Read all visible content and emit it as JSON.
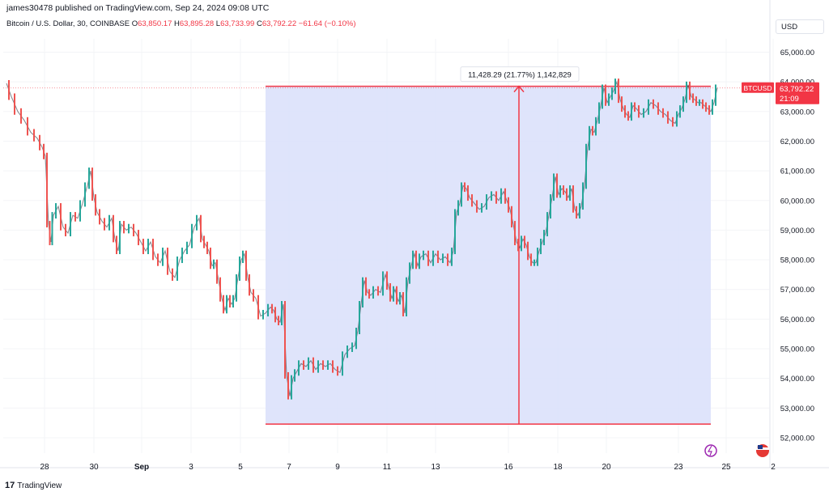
{
  "header": {
    "published": "james30478 published on TradingView.com, Sep 24, 2024 09:08 UTC"
  },
  "symbol": {
    "name": "Bitcoin / U.S. Dollar, 30, COINBASE",
    "open_label": "O",
    "open": "63,850.17",
    "high_label": "H",
    "high": "63,895.28",
    "low_label": "L",
    "low": "63,733.99",
    "close_label": "C",
    "close": "63,792.22",
    "change": "−61.64 (−0.10%)"
  },
  "currency": "USD",
  "footer": {
    "brand": "TradingView",
    "logo_glyph": "17"
  },
  "colors": {
    "up": "#26a69a",
    "down": "#ef5350",
    "measure": "#f23645",
    "measure_fill": "#dbe1fb"
  },
  "chart_data": {
    "type": "candlestick",
    "x_ticks": [
      "28",
      "30",
      "Sep",
      "3",
      "5",
      "7",
      "9",
      "11",
      "13",
      "16",
      "18",
      "20",
      "23",
      "25",
      "2"
    ],
    "y_ticks": [
      "65,000.00",
      "64,000.00",
      "63,000.00",
      "62,000.00",
      "61,000.00",
      "60,000.00",
      "59,000.00",
      "58,000.00",
      "57,000.00",
      "56,000.00",
      "55,000.00",
      "54,000.00",
      "53,000.00",
      "52,000.00"
    ],
    "ylim": [
      51700,
      65900
    ],
    "series": [
      {
        "values": [
          [
            0,
            63950
          ],
          [
            6,
            63500
          ],
          [
            14,
            63000
          ],
          [
            22,
            62700
          ],
          [
            30,
            62300
          ],
          [
            38,
            62100
          ],
          [
            44,
            61800
          ],
          [
            48,
            61500
          ],
          [
            52,
            59200
          ],
          [
            55,
            58600
          ],
          [
            58,
            59500
          ],
          [
            64,
            59800
          ],
          [
            70,
            59100
          ],
          [
            76,
            58900
          ],
          [
            82,
            59500
          ],
          [
            88,
            59400
          ],
          [
            94,
            59900
          ],
          [
            100,
            60500
          ],
          [
            104,
            61000
          ],
          [
            108,
            60100
          ],
          [
            112,
            59600
          ],
          [
            118,
            59300
          ],
          [
            124,
            59100
          ],
          [
            130,
            59400
          ],
          [
            134,
            58700
          ],
          [
            138,
            58300
          ],
          [
            142,
            59200
          ],
          [
            148,
            59000
          ],
          [
            154,
            59100
          ],
          [
            160,
            58900
          ],
          [
            166,
            58600
          ],
          [
            172,
            58300
          ],
          [
            178,
            58600
          ],
          [
            184,
            58100
          ],
          [
            190,
            57900
          ],
          [
            196,
            58300
          ],
          [
            202,
            57600
          ],
          [
            208,
            57400
          ],
          [
            214,
            58000
          ],
          [
            220,
            58300
          ],
          [
            226,
            58500
          ],
          [
            232,
            59100
          ],
          [
            238,
            59400
          ],
          [
            242,
            58700
          ],
          [
            246,
            58500
          ],
          [
            250,
            58300
          ],
          [
            254,
            57800
          ],
          [
            258,
            57900
          ],
          [
            262,
            57300
          ],
          [
            266,
            56700
          ],
          [
            270,
            56300
          ],
          [
            274,
            56700
          ],
          [
            278,
            56500
          ],
          [
            282,
            56700
          ],
          [
            286,
            57400
          ],
          [
            290,
            58000
          ],
          [
            294,
            58200
          ],
          [
            298,
            57400
          ],
          [
            302,
            56900
          ],
          [
            308,
            56700
          ],
          [
            314,
            56100
          ],
          [
            320,
            56200
          ],
          [
            326,
            56400
          ],
          [
            330,
            56300
          ],
          [
            334,
            56000
          ],
          [
            338,
            55900
          ],
          [
            342,
            56500
          ],
          [
            346,
            54100
          ],
          [
            350,
            53400
          ],
          [
            354,
            54000
          ],
          [
            358,
            54200
          ],
          [
            364,
            54500
          ],
          [
            370,
            54400
          ],
          [
            376,
            54600
          ],
          [
            382,
            54300
          ],
          [
            388,
            54500
          ],
          [
            394,
            54400
          ],
          [
            400,
            54500
          ],
          [
            406,
            54300
          ],
          [
            412,
            54200
          ],
          [
            418,
            54800
          ],
          [
            424,
            55000
          ],
          [
            430,
            55100
          ],
          [
            434,
            55600
          ],
          [
            438,
            56500
          ],
          [
            442,
            57300
          ],
          [
            446,
            56900
          ],
          [
            450,
            56800
          ],
          [
            456,
            57000
          ],
          [
            462,
            56900
          ],
          [
            468,
            57500
          ],
          [
            472,
            57100
          ],
          [
            476,
            56700
          ],
          [
            480,
            57000
          ],
          [
            484,
            56600
          ],
          [
            488,
            56800
          ],
          [
            492,
            56200
          ],
          [
            496,
            57300
          ],
          [
            500,
            57800
          ],
          [
            504,
            58200
          ],
          [
            508,
            57800
          ],
          [
            512,
            58100
          ],
          [
            518,
            58200
          ],
          [
            524,
            57900
          ],
          [
            530,
            58200
          ],
          [
            536,
            58000
          ],
          [
            542,
            58100
          ],
          [
            548,
            57900
          ],
          [
            552,
            58300
          ],
          [
            556,
            59600
          ],
          [
            560,
            59900
          ],
          [
            564,
            60500
          ],
          [
            568,
            60400
          ],
          [
            572,
            60100
          ],
          [
            578,
            59900
          ],
          [
            584,
            59700
          ],
          [
            590,
            59800
          ],
          [
            596,
            60100
          ],
          [
            602,
            60200
          ],
          [
            608,
            60000
          ],
          [
            614,
            60300
          ],
          [
            618,
            60000
          ],
          [
            622,
            59700
          ],
          [
            626,
            59200
          ],
          [
            630,
            58600
          ],
          [
            634,
            58400
          ],
          [
            638,
            58700
          ],
          [
            642,
            58500
          ],
          [
            646,
            58100
          ],
          [
            650,
            57900
          ],
          [
            654,
            57900
          ],
          [
            658,
            58300
          ],
          [
            662,
            58600
          ],
          [
            666,
            58900
          ],
          [
            670,
            59500
          ],
          [
            674,
            60100
          ],
          [
            678,
            60800
          ],
          [
            682,
            60200
          ],
          [
            686,
            60400
          ],
          [
            690,
            60300
          ],
          [
            694,
            60100
          ],
          [
            698,
            60400
          ],
          [
            702,
            59700
          ],
          [
            706,
            59500
          ],
          [
            710,
            59800
          ],
          [
            714,
            60500
          ],
          [
            718,
            61800
          ],
          [
            722,
            62400
          ],
          [
            726,
            62300
          ],
          [
            730,
            62700
          ],
          [
            734,
            63200
          ],
          [
            738,
            63800
          ],
          [
            742,
            63300
          ],
          [
            746,
            63500
          ],
          [
            750,
            63700
          ],
          [
            754,
            64000
          ],
          [
            758,
            63400
          ],
          [
            762,
            63100
          ],
          [
            766,
            62900
          ],
          [
            770,
            62800
          ],
          [
            774,
            63200
          ],
          [
            778,
            63100
          ],
          [
            784,
            62900
          ],
          [
            790,
            63000
          ],
          [
            796,
            63300
          ],
          [
            802,
            63200
          ],
          [
            808,
            63000
          ],
          [
            814,
            62900
          ],
          [
            820,
            62700
          ],
          [
            826,
            62600
          ],
          [
            830,
            62900
          ],
          [
            834,
            63100
          ],
          [
            838,
            63400
          ],
          [
            842,
            63900
          ],
          [
            846,
            63500
          ],
          [
            850,
            63400
          ],
          [
            854,
            63300
          ],
          [
            858,
            63300
          ],
          [
            862,
            63200
          ],
          [
            866,
            63100
          ],
          [
            870,
            63000
          ],
          [
            874,
            63300
          ],
          [
            878,
            63800
          ]
        ]
      }
    ],
    "measure": {
      "label": "11,428.29 (21.77%) 1,142,829",
      "high": 63850,
      "low": 52460
    },
    "price_label": {
      "symbol": "BTCUSD",
      "value": "63,792.22",
      "countdown": "21:09",
      "price": 63792
    }
  }
}
